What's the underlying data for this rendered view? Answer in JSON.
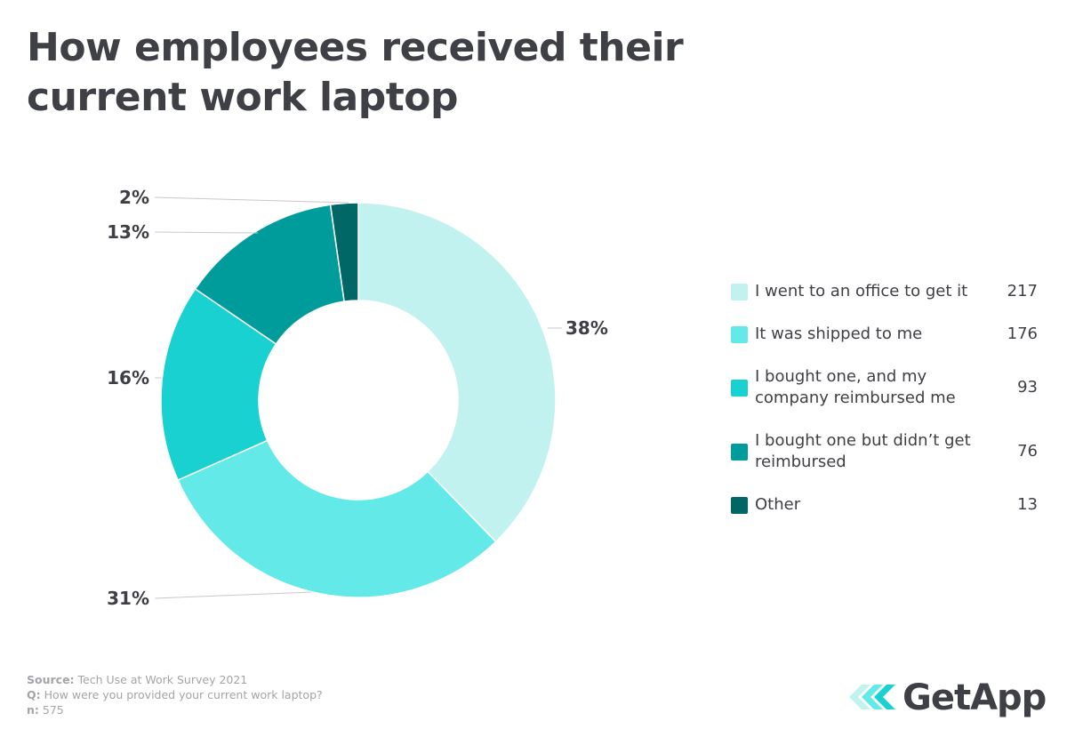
{
  "title": {
    "line1": "How employees received their",
    "line2": "current work laptop"
  },
  "chart_data": {
    "type": "pie",
    "variant": "donut",
    "title": "How employees received their current work laptop",
    "series": [
      {
        "name": "I went to an office to get it",
        "label_lines": [
          "I went to an office to get it"
        ],
        "value": 217,
        "percent_label": "38%",
        "color": "#c2f2f0"
      },
      {
        "name": "It was shipped to me",
        "label_lines": [
          "It was shipped to me"
        ],
        "value": 176,
        "percent_label": "31%",
        "color": "#64e9e9"
      },
      {
        "name": "I bought one, and my company reimbursed me",
        "label_lines": [
          "I bought one, and my",
          "company reimbursed me"
        ],
        "value": 93,
        "percent_label": "16%",
        "color": "#19d1d1"
      },
      {
        "name": "I bought one but didn’t get reimbursed",
        "label_lines": [
          "I bought one but didn’t get",
          "reimbursed"
        ],
        "value": 76,
        "percent_label": "13%",
        "color": "#009c9c"
      },
      {
        "name": "Other",
        "label_lines": [
          "Other"
        ],
        "value": 13,
        "percent_label": "2%",
        "color": "#006666"
      }
    ],
    "legend_placement": "right"
  },
  "footer": {
    "source_key": "Source:",
    "source_value": "Tech Use at Work Survey 2021",
    "q_key": "Q:",
    "q_value": "How were you provided your current work laptop?",
    "n_key": "n:",
    "n_value": "575"
  },
  "logo": {
    "text": "GetApp",
    "colors": [
      "#c2f2f0",
      "#64e9e9",
      "#19d1d1"
    ]
  }
}
